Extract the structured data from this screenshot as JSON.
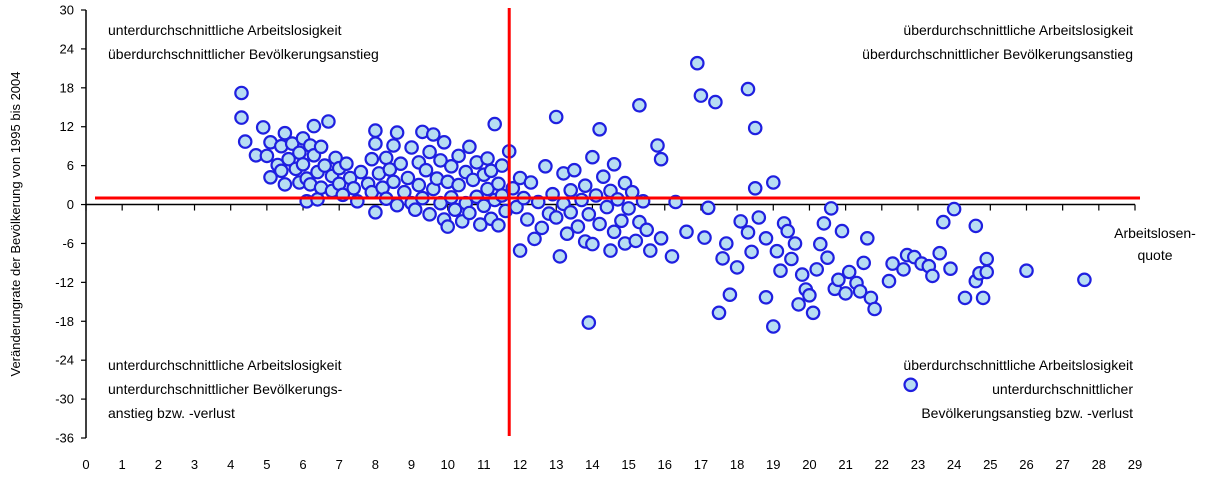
{
  "chart_data": {
    "type": "scatter",
    "xlabel": "Arbeitslosen-\nquote",
    "ylabel": "Veränderungrate der Bevölkerung von 1995 bis 2004",
    "xlim": [
      0,
      29
    ],
    "ylim": [
      -36,
      30
    ],
    "x_ticks": [
      "0",
      "1",
      "2",
      "3",
      "4",
      "5",
      "6",
      "7",
      "8",
      "9",
      "10",
      "11",
      "12",
      "13",
      "14",
      "15",
      "16",
      "17",
      "18",
      "19",
      "20",
      "21",
      "22",
      "23",
      "24",
      "25",
      "26",
      "27",
      "28",
      "29"
    ],
    "y_ticks": [
      "30",
      "24",
      "18",
      "12",
      "6",
      "0",
      "-6",
      "-12",
      "-18",
      "-24",
      "-30",
      "-36"
    ],
    "reference_lines": {
      "x": 11.7,
      "y": 1.0,
      "color": "#ff0000"
    },
    "quadrant_labels": {
      "top_left": [
        "unterdurchschnittliche Arbeitslosigkeit",
        "überdurchschnittlicher Bevölkerungsanstieg"
      ],
      "top_right": [
        "überdurchschnittliche Arbeitslosigkeit",
        "überdurchschnittlicher Bevölkerungsanstieg"
      ],
      "bottom_left": [
        "unterdurchschnittliche Arbeitslosigkeit",
        "unterdurchschnittlicher Bevölkerungs-",
        "anstieg bzw. -verlust"
      ],
      "bottom_right": [
        "überdurchschnittliche Arbeitslosigkeit",
        "unterdurchschnittlicher",
        "Bevölkerungsanstieg bzw. -verlust"
      ]
    },
    "marker": {
      "fill": "#b7ddf3",
      "stroke": "#1f1fe0"
    },
    "points": [
      [
        4.3,
        17.2
      ],
      [
        4.3,
        13.4
      ],
      [
        4.4,
        9.7
      ],
      [
        4.7,
        7.6
      ],
      [
        4.9,
        11.9
      ],
      [
        5.1,
        9.6
      ],
      [
        5.0,
        7.5
      ],
      [
        5.1,
        4.2
      ],
      [
        5.3,
        6.1
      ],
      [
        5.4,
        9.0
      ],
      [
        5.5,
        11.0
      ],
      [
        5.4,
        5.2
      ],
      [
        5.5,
        3.1
      ],
      [
        5.6,
        7.0
      ],
      [
        5.7,
        9.4
      ],
      [
        5.8,
        5.5
      ],
      [
        5.9,
        3.4
      ],
      [
        5.9,
        8.0
      ],
      [
        6.0,
        10.2
      ],
      [
        6.0,
        6.2
      ],
      [
        6.1,
        4.0
      ],
      [
        6.1,
        0.5
      ],
      [
        6.2,
        9.1
      ],
      [
        6.2,
        3.1
      ],
      [
        6.3,
        12.1
      ],
      [
        6.3,
        7.6
      ],
      [
        6.4,
        5.0
      ],
      [
        6.4,
        0.8
      ],
      [
        6.5,
        8.9
      ],
      [
        6.5,
        2.6
      ],
      [
        6.6,
        6.0
      ],
      [
        6.7,
        12.8
      ],
      [
        6.8,
        4.4
      ],
      [
        6.8,
        2.1
      ],
      [
        6.9,
        7.2
      ],
      [
        7.0,
        5.6
      ],
      [
        7.0,
        3.2
      ],
      [
        7.1,
        1.5
      ],
      [
        7.2,
        6.3
      ],
      [
        7.3,
        4.1
      ],
      [
        7.4,
        2.5
      ],
      [
        7.5,
        0.5
      ],
      [
        7.6,
        5.0
      ],
      [
        7.8,
        3.2
      ],
      [
        7.9,
        7.0
      ],
      [
        7.9,
        1.9
      ],
      [
        8.0,
        11.4
      ],
      [
        8.0,
        9.4
      ],
      [
        8.0,
        -1.2
      ],
      [
        8.1,
        4.8
      ],
      [
        8.2,
        2.6
      ],
      [
        8.3,
        0.9
      ],
      [
        8.3,
        7.2
      ],
      [
        8.4,
        5.4
      ],
      [
        8.5,
        3.5
      ],
      [
        8.5,
        9.1
      ],
      [
        8.6,
        -0.1
      ],
      [
        8.6,
        11.1
      ],
      [
        8.7,
        6.3
      ],
      [
        8.8,
        1.9
      ],
      [
        8.9,
        4.1
      ],
      [
        9.0,
        8.8
      ],
      [
        9.0,
        0.2
      ],
      [
        9.1,
        -0.8
      ],
      [
        9.2,
        6.5
      ],
      [
        9.2,
        3.0
      ],
      [
        9.3,
        11.2
      ],
      [
        9.3,
        1.0
      ],
      [
        9.4,
        5.3
      ],
      [
        9.5,
        -1.5
      ],
      [
        9.5,
        8.1
      ],
      [
        9.6,
        2.4
      ],
      [
        9.6,
        10.8
      ],
      [
        9.7,
        4.0
      ],
      [
        9.8,
        0.2
      ],
      [
        9.8,
        6.8
      ],
      [
        9.9,
        -2.3
      ],
      [
        9.9,
        9.6
      ],
      [
        10.0,
        3.5
      ],
      [
        10.0,
        -3.4
      ],
      [
        10.1,
        5.9
      ],
      [
        10.1,
        1.1
      ],
      [
        10.2,
        -0.8
      ],
      [
        10.3,
        7.5
      ],
      [
        10.3,
        3.0
      ],
      [
        10.4,
        -2.6
      ],
      [
        10.5,
        5.0
      ],
      [
        10.5,
        0.2
      ],
      [
        10.6,
        8.9
      ],
      [
        10.6,
        -1.3
      ],
      [
        10.7,
        3.8
      ],
      [
        10.8,
        6.5
      ],
      [
        10.8,
        1.2
      ],
      [
        10.9,
        -3.1
      ],
      [
        11.0,
        4.6
      ],
      [
        11.0,
        -0.2
      ],
      [
        11.1,
        2.4
      ],
      [
        11.1,
        7.1
      ],
      [
        11.2,
        -2.2
      ],
      [
        11.2,
        5.2
      ],
      [
        11.3,
        12.4
      ],
      [
        11.3,
        0.7
      ],
      [
        11.4,
        3.2
      ],
      [
        11.4,
        -3.2
      ],
      [
        11.5,
        6.0
      ],
      [
        11.5,
        1.4
      ],
      [
        11.6,
        -1.0
      ],
      [
        11.7,
        8.2
      ],
      [
        11.8,
        2.5
      ],
      [
        11.9,
        -0.4
      ],
      [
        12.0,
        4.1
      ],
      [
        12.0,
        -7.1
      ],
      [
        12.1,
        1.0
      ],
      [
        12.2,
        -2.3
      ],
      [
        12.3,
        3.4
      ],
      [
        12.4,
        -5.3
      ],
      [
        12.5,
        0.4
      ],
      [
        12.6,
        -3.6
      ],
      [
        12.7,
        5.9
      ],
      [
        12.8,
        -1.4
      ],
      [
        12.9,
        1.6
      ],
      [
        13.0,
        13.5
      ],
      [
        13.0,
        -2.0
      ],
      [
        13.1,
        -8.0
      ],
      [
        13.2,
        4.8
      ],
      [
        13.2,
        0.1
      ],
      [
        13.3,
        -4.5
      ],
      [
        13.4,
        2.2
      ],
      [
        13.4,
        -1.2
      ],
      [
        13.5,
        5.3
      ],
      [
        13.6,
        -3.4
      ],
      [
        13.7,
        0.7
      ],
      [
        13.8,
        -5.7
      ],
      [
        13.8,
        2.9
      ],
      [
        13.9,
        -18.2
      ],
      [
        13.9,
        -1.5
      ],
      [
        14.0,
        7.3
      ],
      [
        14.0,
        -6.1
      ],
      [
        14.1,
        1.4
      ],
      [
        14.2,
        11.6
      ],
      [
        14.2,
        -3.0
      ],
      [
        14.3,
        4.3
      ],
      [
        14.4,
        -0.4
      ],
      [
        14.5,
        -7.1
      ],
      [
        14.5,
        2.1
      ],
      [
        14.6,
        6.2
      ],
      [
        14.6,
        -4.2
      ],
      [
        14.7,
        0.8
      ],
      [
        14.8,
        -2.5
      ],
      [
        14.9,
        3.3
      ],
      [
        14.9,
        -6.0
      ],
      [
        15.0,
        -0.6
      ],
      [
        15.1,
        1.9
      ],
      [
        15.2,
        -5.6
      ],
      [
        15.3,
        15.3
      ],
      [
        15.3,
        -2.7
      ],
      [
        15.4,
        0.5
      ],
      [
        15.5,
        -3.9
      ],
      [
        15.6,
        -7.1
      ],
      [
        15.8,
        9.1
      ],
      [
        15.9,
        -5.2
      ],
      [
        15.9,
        7.0
      ],
      [
        16.2,
        -8.0
      ],
      [
        16.3,
        0.4
      ],
      [
        16.6,
        -4.2
      ],
      [
        16.9,
        21.8
      ],
      [
        17.0,
        16.8
      ],
      [
        17.1,
        -5.1
      ],
      [
        17.2,
        -0.5
      ],
      [
        17.4,
        15.8
      ],
      [
        17.5,
        -16.7
      ],
      [
        17.6,
        -8.3
      ],
      [
        17.7,
        -6.0
      ],
      [
        17.8,
        -13.9
      ],
      [
        18.0,
        -9.7
      ],
      [
        18.1,
        -2.6
      ],
      [
        18.3,
        17.8
      ],
      [
        18.3,
        -4.3
      ],
      [
        18.4,
        -7.3
      ],
      [
        18.5,
        11.8
      ],
      [
        18.5,
        2.5
      ],
      [
        18.6,
        -2.0
      ],
      [
        18.8,
        -14.3
      ],
      [
        18.8,
        -5.2
      ],
      [
        19.0,
        -18.8
      ],
      [
        19.0,
        3.4
      ],
      [
        19.1,
        -7.2
      ],
      [
        19.2,
        -10.2
      ],
      [
        19.3,
        -2.9
      ],
      [
        19.4,
        -4.1
      ],
      [
        19.5,
        -8.4
      ],
      [
        19.6,
        -6.0
      ],
      [
        19.7,
        -15.4
      ],
      [
        19.8,
        -10.8
      ],
      [
        19.9,
        -13.1
      ],
      [
        20.0,
        -14.0
      ],
      [
        20.1,
        -16.7
      ],
      [
        20.2,
        -10.0
      ],
      [
        20.3,
        -6.1
      ],
      [
        20.4,
        -2.9
      ],
      [
        20.5,
        -8.2
      ],
      [
        20.6,
        -0.6
      ],
      [
        20.7,
        -13.0
      ],
      [
        20.8,
        -11.6
      ],
      [
        20.9,
        -4.1
      ],
      [
        21.0,
        -13.7
      ],
      [
        21.1,
        -10.4
      ],
      [
        21.3,
        -12.1
      ],
      [
        21.4,
        -13.4
      ],
      [
        21.5,
        -9.0
      ],
      [
        21.6,
        -5.2
      ],
      [
        21.7,
        -14.4
      ],
      [
        21.8,
        -16.1
      ],
      [
        22.2,
        -11.8
      ],
      [
        22.3,
        -9.1
      ],
      [
        22.6,
        -10.0
      ],
      [
        22.7,
        -7.8
      ],
      [
        22.8,
        -27.8
      ],
      [
        22.9,
        -8.1
      ],
      [
        23.1,
        -9.1
      ],
      [
        23.3,
        -9.5
      ],
      [
        23.4,
        -11.0
      ],
      [
        23.6,
        -7.5
      ],
      [
        23.7,
        -2.7
      ],
      [
        23.9,
        -9.9
      ],
      [
        24.0,
        -0.7
      ],
      [
        24.3,
        -14.4
      ],
      [
        24.6,
        -11.8
      ],
      [
        24.6,
        -3.3
      ],
      [
        24.7,
        -10.6
      ],
      [
        24.8,
        -14.4
      ],
      [
        24.9,
        -8.4
      ],
      [
        24.9,
        -10.4
      ],
      [
        26.0,
        -10.2
      ],
      [
        27.6,
        -11.6
      ]
    ]
  }
}
